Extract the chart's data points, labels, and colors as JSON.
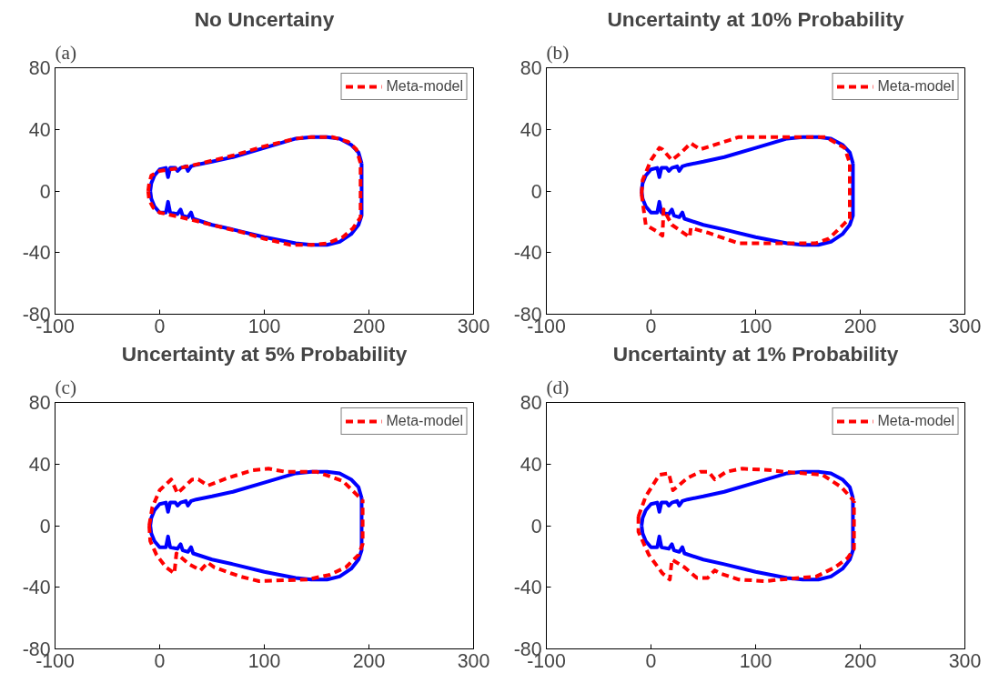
{
  "chart_data": [
    {
      "type": "line",
      "title": "No Uncertainy",
      "annotations": [
        "(a)"
      ],
      "xlim": [
        -100,
        300
      ],
      "ylim": [
        -80,
        80
      ],
      "xticks": [
        -100,
        0,
        100,
        200,
        300
      ],
      "yticks": [
        -80,
        -40,
        0,
        40,
        80
      ],
      "grid": false,
      "legend": "top right",
      "series": [
        {
          "color": "#0000ff",
          "line_style": "solid",
          "x": [
            -9,
            -8,
            -5,
            0,
            6,
            8,
            10,
            15,
            17,
            20,
            25,
            27,
            30,
            35,
            50,
            70,
            100,
            130,
            145,
            160,
            172,
            183,
            190,
            193,
            null,
            -9,
            -8,
            -5,
            0,
            6,
            8,
            10,
            17,
            20,
            22,
            27,
            30,
            32,
            50,
            70,
            100,
            130,
            145,
            160,
            172,
            183,
            190,
            193,
            193
          ],
          "values": [
            0,
            5,
            10,
            14,
            15,
            9,
            15,
            15,
            13,
            15,
            16,
            13,
            16,
            17,
            19,
            22,
            28,
            34,
            35,
            35,
            34,
            30,
            25,
            18,
            null,
            0,
            -5,
            -10,
            -14,
            -14,
            -7,
            -14,
            -15,
            -12,
            -16,
            -17,
            -14,
            -18,
            -22,
            -25,
            -30,
            -34,
            -35,
            -35,
            -33,
            -28,
            -22,
            -16,
            18
          ]
        },
        {
          "name": "Meta-model",
          "color": "#ff0000",
          "line_style": "dashed",
          "x": [
            -11,
            -10,
            -8,
            0,
            20,
            40,
            70,
            100,
            130,
            145,
            165,
            180,
            188,
            192,
            null,
            -11,
            -10,
            -6,
            0,
            20,
            50,
            80,
            100,
            125,
            145,
            160,
            175,
            185,
            192,
            192
          ],
          "values": [
            0,
            5,
            10,
            13,
            15,
            18,
            23,
            29,
            34,
            35,
            35,
            32,
            27,
            18,
            null,
            0,
            -6,
            -11,
            -14,
            -17,
            -22,
            -27,
            -31,
            -35,
            -35,
            -34,
            -30,
            -24,
            -17,
            18
          ]
        }
      ]
    },
    {
      "type": "line",
      "title": "Uncertainty at 10% Probability",
      "annotations": [
        "(b)"
      ],
      "xlim": [
        -100,
        300
      ],
      "ylim": [
        -80,
        80
      ],
      "xticks": [
        -100,
        0,
        100,
        200,
        300
      ],
      "yticks": [
        -80,
        -40,
        0,
        40,
        80
      ],
      "grid": false,
      "legend": "top right",
      "series": [
        {
          "color": "#0000ff",
          "line_style": "solid",
          "x": [
            -9,
            -8,
            -5,
            0,
            6,
            8,
            10,
            15,
            17,
            20,
            25,
            27,
            30,
            35,
            50,
            70,
            100,
            130,
            145,
            160,
            172,
            183,
            190,
            193,
            null,
            -9,
            -8,
            -5,
            0,
            6,
            8,
            10,
            17,
            20,
            22,
            27,
            30,
            32,
            50,
            70,
            100,
            130,
            145,
            160,
            172,
            183,
            190,
            193,
            193
          ],
          "values": [
            0,
            5,
            10,
            14,
            15,
            9,
            15,
            15,
            13,
            15,
            16,
            13,
            16,
            17,
            19,
            22,
            28,
            34,
            35,
            35,
            34,
            30,
            25,
            18,
            null,
            0,
            -5,
            -10,
            -14,
            -14,
            -7,
            -14,
            -15,
            -12,
            -16,
            -17,
            -14,
            -18,
            -22,
            -25,
            -30,
            -34,
            -35,
            -35,
            -33,
            -28,
            -22,
            -16,
            18
          ]
        },
        {
          "name": "Meta-model",
          "color": "#ff0000",
          "line_style": "dashed",
          "x": [
            -9,
            -8,
            0,
            8,
            11,
            20,
            29,
            38,
            47,
            75,
            84,
            167,
            185,
            190,
            null,
            -9,
            -5,
            5,
            11,
            12,
            20,
            37,
            38,
            54,
            84,
            157,
            170,
            185,
            190,
            190
          ],
          "values": [
            -2,
            7,
            20,
            28,
            27,
            20,
            25,
            31,
            27,
            33,
            35,
            35,
            28,
            18,
            null,
            -2,
            -22,
            -26,
            -29,
            -12,
            -22,
            -30,
            -24,
            -27,
            -34,
            -34,
            -31,
            -21,
            -18,
            18
          ]
        }
      ]
    },
    {
      "type": "line",
      "title": "Uncertainty at 5% Probability",
      "annotations": [
        "(c)"
      ],
      "xlim": [
        -100,
        300
      ],
      "ylim": [
        -80,
        80
      ],
      "xticks": [
        -100,
        0,
        100,
        200,
        300
      ],
      "yticks": [
        -80,
        -40,
        0,
        40,
        80
      ],
      "grid": false,
      "legend": "top right",
      "series": [
        {
          "color": "#0000ff",
          "line_style": "solid",
          "x": [
            -9,
            -8,
            -5,
            0,
            6,
            8,
            10,
            15,
            17,
            20,
            25,
            27,
            30,
            35,
            50,
            70,
            100,
            130,
            145,
            160,
            172,
            183,
            190,
            193,
            null,
            -9,
            -8,
            -5,
            0,
            6,
            8,
            10,
            17,
            20,
            22,
            27,
            30,
            32,
            50,
            70,
            100,
            130,
            145,
            160,
            172,
            183,
            190,
            193,
            193
          ],
          "values": [
            0,
            5,
            10,
            14,
            15,
            9,
            15,
            15,
            13,
            15,
            16,
            13,
            16,
            17,
            19,
            22,
            28,
            34,
            35,
            35,
            34,
            30,
            25,
            18,
            null,
            0,
            -5,
            -10,
            -14,
            -14,
            -7,
            -14,
            -15,
            -12,
            -16,
            -17,
            -14,
            -18,
            -22,
            -25,
            -30,
            -34,
            -35,
            -35,
            -33,
            -28,
            -22,
            -16,
            18
          ]
        },
        {
          "name": "Meta-model",
          "color": "#ff0000",
          "line_style": "dashed",
          "x": [
            -10,
            -7,
            0,
            11,
            17,
            31,
            37,
            46,
            65,
            89,
            104,
            120,
            150,
            175,
            190,
            194,
            null,
            -10,
            -9,
            -3,
            6,
            14,
            16,
            28,
            39,
            46,
            52,
            77,
            95,
            141,
            162,
            178,
            190,
            194,
            194
          ],
          "values": [
            0,
            12,
            23,
            30,
            21,
            30,
            30,
            26,
            31,
            36,
            37,
            35,
            35,
            29,
            19,
            17,
            null,
            0,
            -10,
            -19,
            -27,
            -31,
            -18,
            -25,
            -29,
            -24,
            -27,
            -33,
            -36,
            -35,
            -32,
            -27,
            -19,
            -12,
            17
          ]
        }
      ]
    },
    {
      "type": "line",
      "title": "Uncertainty at 1% Probability",
      "annotations": [
        "(d)"
      ],
      "xlim": [
        -100,
        300
      ],
      "ylim": [
        -80,
        80
      ],
      "xticks": [
        -100,
        0,
        100,
        200,
        300
      ],
      "yticks": [
        -80,
        -40,
        0,
        40,
        80
      ],
      "grid": false,
      "legend": "top right",
      "series": [
        {
          "color": "#0000ff",
          "line_style": "solid",
          "x": [
            -9,
            -8,
            -5,
            0,
            6,
            8,
            10,
            15,
            17,
            20,
            25,
            27,
            30,
            35,
            50,
            70,
            100,
            130,
            145,
            160,
            172,
            183,
            190,
            193,
            null,
            -9,
            -8,
            -5,
            0,
            6,
            8,
            10,
            17,
            20,
            22,
            27,
            30,
            32,
            50,
            70,
            100,
            130,
            145,
            160,
            172,
            183,
            190,
            193,
            193
          ],
          "values": [
            0,
            5,
            10,
            14,
            15,
            9,
            15,
            15,
            13,
            15,
            16,
            13,
            16,
            17,
            19,
            22,
            28,
            34,
            35,
            35,
            34,
            30,
            25,
            18,
            null,
            0,
            -5,
            -10,
            -14,
            -14,
            -7,
            -14,
            -15,
            -12,
            -16,
            -17,
            -14,
            -18,
            -22,
            -25,
            -30,
            -34,
            -35,
            -35,
            -33,
            -28,
            -22,
            -16,
            18
          ]
        },
        {
          "name": "Meta-model",
          "color": "#ff0000",
          "line_style": "dashed",
          "x": [
            -12,
            -5,
            8,
            17,
            21,
            35,
            47,
            55,
            61,
            72,
            87,
            115,
            127,
            164,
            182,
            194,
            null,
            -12,
            -12,
            -2,
            11,
            18,
            20,
            32,
            44,
            54,
            61,
            66,
            84,
            109,
            124,
            158,
            176,
            188,
            194,
            194
          ],
          "values": [
            6,
            19,
            33,
            34,
            23,
            31,
            35,
            35,
            30,
            35,
            37,
            36,
            35,
            33,
            25,
            16,
            null,
            6,
            -4,
            -19,
            -31,
            -35,
            -22,
            -27,
            -34,
            -34,
            -29,
            -31,
            -35,
            -36,
            -35,
            -33,
            -27,
            -21,
            -15,
            16
          ]
        }
      ]
    }
  ]
}
